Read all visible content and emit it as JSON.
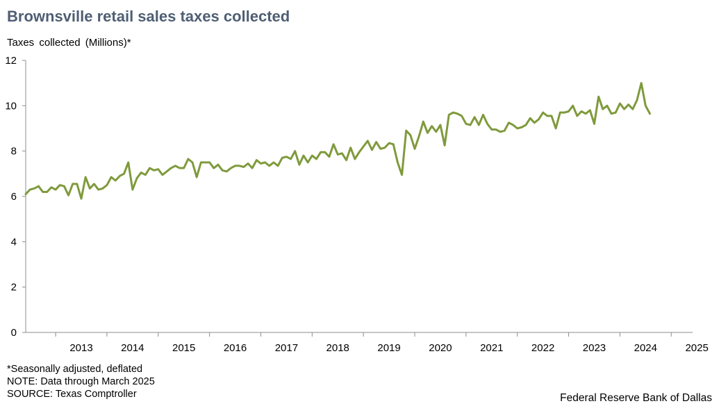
{
  "title": "Brownsville retail sales taxes collected",
  "ylabel": "Taxes  collected  (Millions)*",
  "notes": [
    "*Seasonally adjusted, deflated",
    "NOTE: Data through March 2025",
    "SOURCE: Texas Comptroller"
  ],
  "credit": "Federal Reserve Bank of Dallas",
  "colors": {
    "line": "#7f9a3c",
    "axis": "#8c8c8c",
    "title": "#4f5e73"
  },
  "chart_data": {
    "type": "line",
    "title": "Brownsville retail sales taxes collected",
    "ylabel": "Taxes  collected  (Millions)*",
    "ylim": [
      0,
      12
    ],
    "yticks": [
      0,
      2,
      4,
      6,
      8,
      10,
      12
    ],
    "xlim": [
      "2012-06",
      "2025-06"
    ],
    "xtick_labels": [
      "2013",
      "2014",
      "2015",
      "2016",
      "2017",
      "2018",
      "2019",
      "2020",
      "2021",
      "2022",
      "2023",
      "2024",
      "2025"
    ],
    "grid": false,
    "series": [
      {
        "x_start": "2012-06",
        "frequency": "monthly",
        "x_end": "2025-03",
        "values": [
          6.1,
          6.3,
          6.35,
          6.45,
          6.2,
          6.2,
          6.4,
          6.3,
          6.5,
          6.45,
          6.05,
          6.55,
          6.55,
          5.9,
          6.85,
          6.35,
          6.55,
          6.3,
          6.35,
          6.5,
          6.85,
          6.7,
          6.9,
          7.0,
          7.5,
          6.3,
          6.8,
          7.05,
          6.95,
          7.25,
          7.15,
          7.2,
          6.95,
          7.1,
          7.25,
          7.35,
          7.25,
          7.25,
          7.65,
          7.5,
          6.85,
          7.5,
          7.5,
          7.5,
          7.25,
          7.4,
          7.15,
          7.1,
          7.25,
          7.35,
          7.35,
          7.3,
          7.45,
          7.25,
          7.6,
          7.45,
          7.5,
          7.35,
          7.5,
          7.35,
          7.7,
          7.75,
          7.65,
          8.0,
          7.4,
          7.8,
          7.5,
          7.8,
          7.65,
          7.95,
          7.95,
          7.75,
          8.3,
          7.85,
          7.9,
          7.6,
          8.15,
          7.65,
          7.95,
          8.2,
          8.45,
          8.05,
          8.4,
          8.1,
          8.15,
          8.35,
          8.3,
          7.5,
          6.95,
          8.9,
          8.7,
          8.1,
          8.65,
          9.3,
          8.8,
          9.1,
          8.85,
          9.15,
          8.25,
          9.6,
          9.7,
          9.65,
          9.55,
          9.2,
          9.15,
          9.5,
          9.15,
          9.6,
          9.2,
          8.95,
          8.95,
          8.85,
          8.9,
          9.25,
          9.15,
          9.0,
          9.05,
          9.15,
          9.45,
          9.25,
          9.4,
          9.7,
          9.55,
          9.55,
          9.0,
          9.7,
          9.7,
          9.75,
          10.0,
          9.55,
          9.75,
          9.65,
          9.8,
          9.2,
          10.4,
          9.85,
          10.0,
          9.65,
          9.7,
          10.1,
          9.85,
          10.05,
          9.85,
          10.25,
          11.0,
          10.0,
          9.65
        ]
      }
    ]
  }
}
